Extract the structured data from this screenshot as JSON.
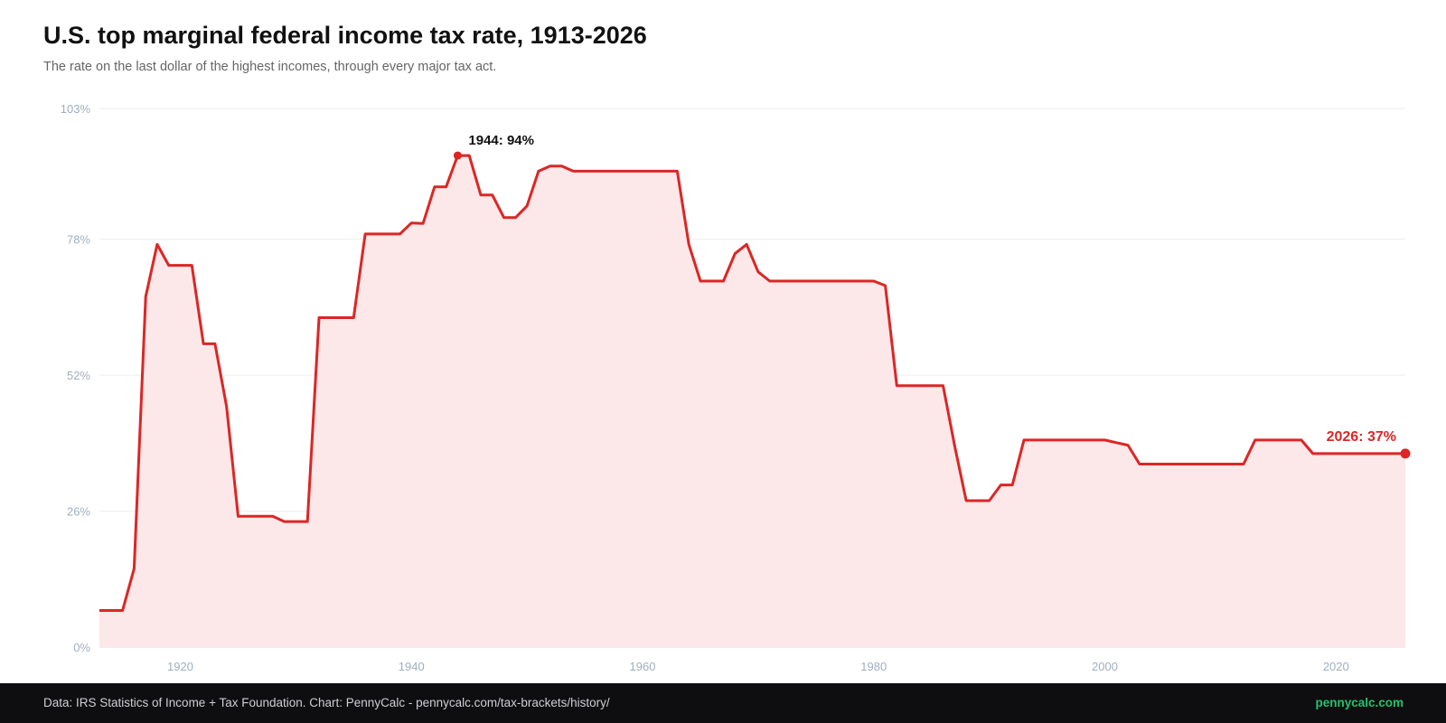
{
  "title": "U.S. top marginal federal income tax rate, 1913-2026",
  "subtitle": "The rate on the last dollar of the highest incomes, through every major tax act.",
  "footer": {
    "source": "Data: IRS Statistics of Income + Tax Foundation. Chart: PennyCalc - pennycalc.com/tax-brackets/history/",
    "brand": "pennycalc.com"
  },
  "colors": {
    "line": "#dc2626",
    "fill": "#fce8e8",
    "grid": "#eeeeee",
    "axis_text": "#a0aec0",
    "brand": "#1fc46f"
  },
  "chart_data": {
    "type": "area",
    "title": "U.S. top marginal federal income tax rate, 1913-2026",
    "subtitle": "The rate on the last dollar of the highest incomes, through every major tax act.",
    "xlabel": "",
    "ylabel": "",
    "xlim": [
      1913,
      2026
    ],
    "ylim": [
      0,
      103
    ],
    "y_ticks": [
      0,
      26,
      52,
      78,
      103
    ],
    "y_tick_labels": [
      "0%",
      "26%",
      "52%",
      "78%",
      "103%"
    ],
    "x_ticks": [
      1920,
      1940,
      1960,
      1980,
      2000,
      2020
    ],
    "x_tick_labels": [
      "1920",
      "1940",
      "1960",
      "1980",
      "2000",
      "2020"
    ],
    "grid": true,
    "legend": "none",
    "series": [
      {
        "x": [
          1913,
          1914,
          1915,
          1916,
          1917,
          1918,
          1919,
          1920,
          1921,
          1922,
          1923,
          1924,
          1925,
          1926,
          1927,
          1928,
          1929,
          1930,
          1931,
          1932,
          1933,
          1934,
          1935,
          1936,
          1937,
          1938,
          1939,
          1940,
          1941,
          1942,
          1943,
          1944,
          1945,
          1946,
          1947,
          1948,
          1949,
          1950,
          1951,
          1952,
          1953,
          1954,
          1955,
          1956,
          1957,
          1958,
          1959,
          1960,
          1961,
          1962,
          1963,
          1964,
          1965,
          1966,
          1967,
          1968,
          1969,
          1970,
          1971,
          1972,
          1973,
          1974,
          1975,
          1976,
          1977,
          1978,
          1979,
          1980,
          1981,
          1982,
          1983,
          1984,
          1985,
          1986,
          1987,
          1988,
          1989,
          1990,
          1991,
          1992,
          1993,
          1994,
          1995,
          1996,
          1997,
          1998,
          1999,
          2000,
          2001,
          2002,
          2003,
          2004,
          2005,
          2006,
          2007,
          2008,
          2009,
          2010,
          2011,
          2012,
          2013,
          2014,
          2015,
          2016,
          2017,
          2018,
          2019,
          2020,
          2021,
          2022,
          2023,
          2024,
          2025,
          2026
        ],
        "y": [
          7,
          7,
          7,
          15,
          67,
          77,
          73,
          73,
          73,
          58,
          58,
          46,
          25,
          25,
          25,
          25,
          24,
          24,
          24,
          63,
          63,
          63,
          63,
          79,
          79,
          79,
          79,
          81.1,
          81,
          88,
          88,
          94,
          94,
          86.45,
          86.45,
          82.13,
          82.13,
          84.36,
          91,
          92,
          92,
          91,
          91,
          91,
          91,
          91,
          91,
          91,
          91,
          91,
          91,
          77,
          70,
          70,
          70,
          75.25,
          77,
          71.75,
          70,
          70,
          70,
          70,
          70,
          70,
          70,
          70,
          70,
          70,
          69.13,
          50,
          50,
          50,
          50,
          50,
          38.5,
          28,
          28,
          28,
          31,
          31,
          39.6,
          39.6,
          39.6,
          39.6,
          39.6,
          39.6,
          39.6,
          39.6,
          39.1,
          38.6,
          35,
          35,
          35,
          35,
          35,
          35,
          35,
          35,
          35,
          35,
          39.6,
          39.6,
          39.6,
          39.6,
          39.6,
          37,
          37,
          37,
          37,
          37,
          37,
          37,
          37,
          37
        ]
      }
    ],
    "annotations": [
      {
        "x": 1944,
        "y": 94,
        "text": "1944: 94%"
      },
      {
        "x": 2026,
        "y": 37,
        "text": "2026: 37%"
      }
    ]
  }
}
